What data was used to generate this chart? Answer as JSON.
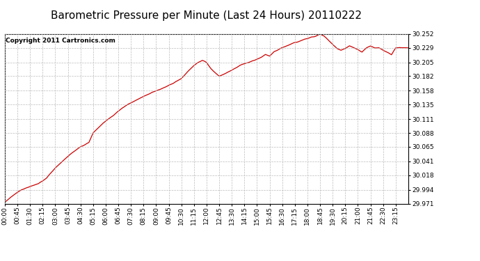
{
  "title": "Barometric Pressure per Minute (Last 24 Hours) 20110222",
  "copyright": "Copyright 2011 Cartronics.com",
  "yticks": [
    29.971,
    29.994,
    30.018,
    30.041,
    30.065,
    30.088,
    30.111,
    30.135,
    30.158,
    30.182,
    30.205,
    30.229,
    30.252
  ],
  "ymin": 29.971,
  "ymax": 30.252,
  "xtick_labels": [
    "00:00",
    "00:45",
    "01:30",
    "02:15",
    "03:00",
    "03:45",
    "04:30",
    "05:15",
    "06:00",
    "06:45",
    "07:30",
    "08:15",
    "09:00",
    "09:45",
    "10:30",
    "11:15",
    "12:00",
    "12:45",
    "13:30",
    "14:15",
    "15:00",
    "15:45",
    "16:30",
    "17:15",
    "18:00",
    "18:45",
    "19:30",
    "20:15",
    "21:00",
    "21:45",
    "22:30",
    "23:15"
  ],
  "line_color": "#cc0000",
  "bg_color": "#ffffff",
  "grid_color": "#bbbbbb",
  "title_fontsize": 11,
  "copyright_fontsize": 6.5,
  "tick_fontsize": 6.5,
  "keypoints_hours": [
    0.0,
    0.5,
    1.0,
    1.5,
    2.0,
    2.5,
    3.0,
    3.5,
    4.0,
    4.5,
    5.0,
    5.25,
    5.5,
    6.0,
    6.5,
    7.0,
    7.5,
    8.0,
    8.5,
    9.0,
    9.5,
    10.0,
    10.5,
    11.0,
    11.25,
    11.5,
    11.75,
    12.0,
    12.25,
    12.5,
    12.75,
    13.0,
    13.5,
    14.0,
    14.5,
    15.0,
    15.25,
    15.5,
    15.75,
    16.0,
    16.5,
    17.0,
    17.5,
    18.0,
    18.5,
    18.75,
    19.0,
    19.25,
    19.5,
    19.75,
    20.0,
    20.25,
    20.5,
    20.75,
    21.0,
    21.25,
    21.5,
    21.75,
    22.0,
    22.25,
    22.5,
    22.75,
    23.0,
    23.25
  ],
  "keypoints_vals": [
    29.973,
    29.985,
    29.994,
    29.999,
    30.004,
    30.014,
    30.03,
    30.043,
    30.055,
    30.065,
    30.072,
    30.088,
    30.095,
    30.108,
    30.118,
    30.13,
    30.138,
    30.145,
    30.152,
    30.158,
    30.163,
    30.17,
    30.178,
    30.193,
    30.2,
    30.205,
    30.208,
    30.205,
    30.195,
    30.188,
    30.182,
    30.185,
    30.192,
    30.2,
    30.205,
    30.21,
    30.213,
    30.218,
    30.215,
    30.222,
    30.229,
    30.235,
    30.24,
    30.245,
    30.248,
    30.252,
    30.248,
    30.242,
    30.235,
    30.228,
    30.225,
    30.228,
    30.232,
    30.229,
    30.226,
    30.222,
    30.229,
    30.232,
    30.229,
    30.229,
    30.225,
    30.222,
    30.218,
    30.229
  ]
}
